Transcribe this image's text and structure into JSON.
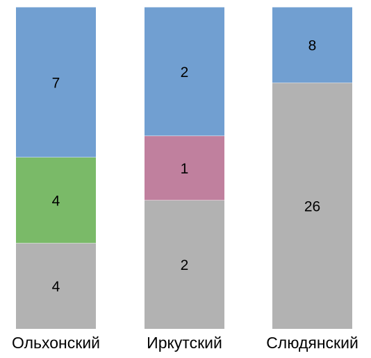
{
  "chart_data": {
    "type": "bar",
    "stacked": "percent",
    "categories": [
      "Ольхонский",
      "Иркутский",
      "Слюдянский"
    ],
    "series": [
      {
        "color": "#b2b2b2",
        "values": [
          4,
          2,
          26
        ]
      },
      {
        "color": "#7aba68",
        "values": [
          4,
          0,
          0
        ]
      },
      {
        "color": "#c0809e",
        "values": [
          0,
          1,
          0
        ]
      },
      {
        "color": "#719fd1",
        "values": [
          7,
          2,
          8
        ]
      }
    ],
    "grid": false,
    "legend": "none"
  }
}
